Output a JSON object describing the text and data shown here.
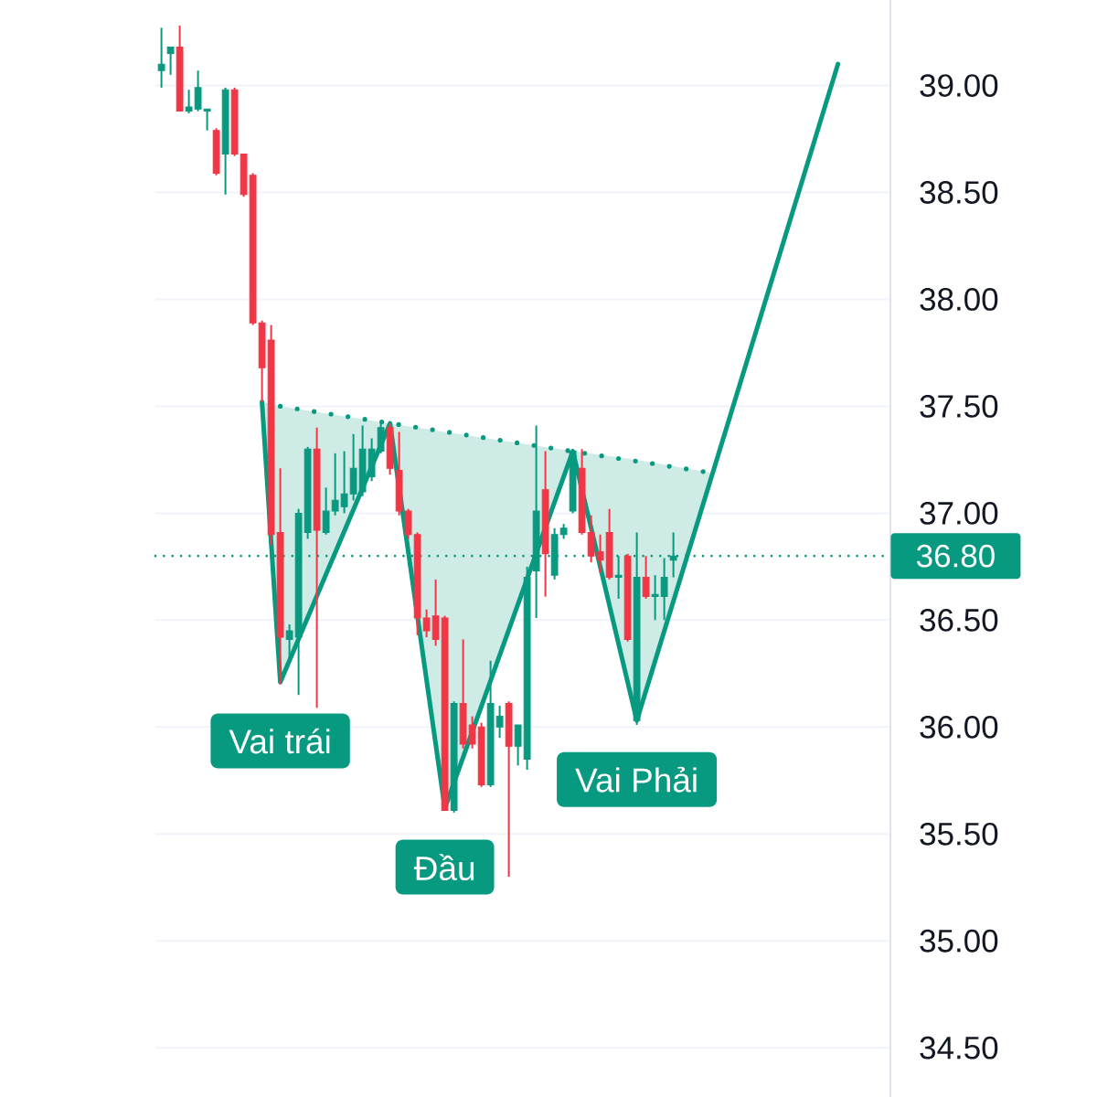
{
  "chart_data": {
    "type": "candlestick",
    "categories": [
      null,
      null,
      null,
      null,
      null,
      null,
      null,
      null,
      null,
      null,
      null,
      null,
      null,
      null,
      null,
      null,
      null,
      null,
      null,
      null,
      null,
      null,
      null,
      null,
      null,
      null,
      null,
      null,
      null,
      null,
      null,
      null,
      null,
      null,
      null,
      null,
      null,
      null,
      null,
      null,
      null,
      null,
      null,
      null,
      null,
      null,
      null,
      null,
      null,
      null,
      null,
      null,
      null,
      null,
      null,
      null,
      null,
      null,
      null,
      null,
      null,
      null,
      null,
      null,
      null,
      null,
      null,
      null,
      null,
      null,
      null,
      null,
      null,
      null,
      null,
      null,
      null,
      null,
      null,
      null
    ],
    "ohlc": [
      [
        39.07,
        39.27,
        38.99,
        39.1
      ],
      [
        39.15,
        39.18,
        39.05,
        39.18
      ],
      [
        39.18,
        39.28,
        38.88,
        38.88
      ],
      [
        38.88,
        38.98,
        38.87,
        38.9
      ],
      [
        38.89,
        39.07,
        38.88,
        38.99
      ],
      [
        38.88,
        38.89,
        38.79,
        38.89
      ],
      [
        38.79,
        38.8,
        38.58,
        38.59
      ],
      [
        38.68,
        38.99,
        38.49,
        38.98
      ],
      [
        38.98,
        38.99,
        38.67,
        38.68
      ],
      [
        38.68,
        38.68,
        38.48,
        38.49
      ],
      [
        38.58,
        38.59,
        37.88,
        37.89
      ],
      [
        37.89,
        37.9,
        37.52,
        37.68
      ],
      [
        37.81,
        37.88,
        36.85,
        36.9
      ],
      [
        36.91,
        37.21,
        36.2,
        36.42
      ],
      [
        36.41,
        36.48,
        36.3,
        36.45
      ],
      [
        36.42,
        37.02,
        36.15,
        37.0
      ],
      [
        36.91,
        37.31,
        36.88,
        37.3
      ],
      [
        37.3,
        37.4,
        36.09,
        36.92
      ],
      [
        36.91,
        37.12,
        36.9,
        37.01
      ],
      [
        37.01,
        37.28,
        36.99,
        37.06
      ],
      [
        37.03,
        37.29,
        37.0,
        37.09
      ],
      [
        37.09,
        37.37,
        37.06,
        37.21
      ],
      [
        37.1,
        37.41,
        37.08,
        37.3
      ],
      [
        37.17,
        37.35,
        37.15,
        37.3
      ],
      [
        37.29,
        37.42,
        37.28,
        37.4
      ],
      [
        37.4,
        37.42,
        37.18,
        37.21
      ],
      [
        37.2,
        37.38,
        36.99,
        37.01
      ],
      [
        37.01,
        37.02,
        36.88,
        36.9
      ],
      [
        36.9,
        36.91,
        36.43,
        36.51
      ],
      [
        36.51,
        36.55,
        36.42,
        36.45
      ],
      [
        36.52,
        36.69,
        36.38,
        36.41
      ],
      [
        36.51,
        36.52,
        35.61,
        35.61
      ],
      [
        35.61,
        36.12,
        35.6,
        36.11
      ],
      [
        36.11,
        36.41,
        35.9,
        35.92
      ],
      [
        36.01,
        36.05,
        35.9,
        35.92
      ],
      [
        36.0,
        36.02,
        35.72,
        35.73
      ],
      [
        35.73,
        36.31,
        35.72,
        36.11
      ],
      [
        36.0,
        36.1,
        35.95,
        36.05
      ],
      [
        36.11,
        36.12,
        35.3,
        35.91
      ],
      [
        35.91,
        36.01,
        35.82,
        36.01
      ],
      [
        35.85,
        36.75,
        35.8,
        36.7
      ],
      [
        36.73,
        37.41,
        36.51,
        37.01
      ],
      [
        37.11,
        37.29,
        36.61,
        36.81
      ],
      [
        36.71,
        36.93,
        36.69,
        36.9
      ],
      [
        36.9,
        36.95,
        36.88,
        36.93
      ],
      [
        37.01,
        37.3,
        37.0,
        37.29
      ],
      [
        37.21,
        37.3,
        36.9,
        36.91
      ],
      [
        36.91,
        36.99,
        36.77,
        36.8
      ],
      [
        36.82,
        36.9,
        36.72,
        36.78
      ],
      [
        36.91,
        37.02,
        36.69,
        36.7
      ],
      [
        36.7,
        36.8,
        36.6,
        36.71
      ],
      [
        36.8,
        36.81,
        36.4,
        36.41
      ],
      [
        36.03,
        36.91,
        36.01,
        36.7
      ],
      [
        36.7,
        36.8,
        36.6,
        36.61
      ],
      [
        36.61,
        36.71,
        36.5,
        36.62
      ],
      [
        36.61,
        36.79,
        36.5,
        36.7
      ],
      [
        36.78,
        36.91,
        36.7,
        36.8
      ],
      null,
      null,
      null,
      null,
      null,
      null,
      null,
      null,
      null,
      null,
      null,
      null,
      null,
      null,
      null,
      null,
      null,
      null,
      null,
      null,
      null,
      null,
      null
    ],
    "colors": [
      "#089981",
      "#089981",
      "#f23645",
      "#089981",
      "#089981",
      "#089981",
      "#f23645",
      "#089981",
      "#f23645",
      "#f23645",
      "#f23645",
      "#f23645",
      "#f23645",
      "#f23645",
      "#089981",
      "#089981",
      "#089981",
      "#f23645",
      "#089981",
      "#089981",
      "#089981",
      "#089981",
      "#089981",
      "#089981",
      "#089981",
      "#f23645",
      "#f23645",
      "#f23645",
      "#f23645",
      "#f23645",
      "#f23645",
      "#f23645",
      "#089981",
      "#f23645",
      "#f23645",
      "#f23645",
      "#089981",
      "#089981",
      "#f23645",
      "#089981",
      "#089981",
      "#089981",
      "#f23645",
      "#089981",
      "#089981",
      "#089981",
      "#f23645",
      "#f23645",
      "#f23645",
      "#f23645",
      "#089981",
      "#f23645",
      "#089981",
      "#f23645",
      "#089981",
      "#089981",
      "#089981",
      null,
      null,
      null,
      null,
      null,
      null,
      null,
      null,
      null,
      null,
      null,
      null,
      null,
      null,
      null,
      null,
      null,
      null,
      null,
      null,
      null,
      null,
      null
    ],
    "series": [
      {
        "type": "line",
        "color": "#089981",
        "values": [
          null,
          null,
          null,
          null,
          null,
          null,
          null,
          null,
          null,
          null,
          null,
          37.52,
          null,
          36.21,
          null,
          null,
          null,
          null,
          null,
          null,
          null,
          null,
          null,
          null,
          null,
          37.42,
          null,
          null,
          null,
          null,
          null,
          35.62,
          null,
          null,
          null,
          null,
          null,
          null,
          null,
          null,
          null,
          null,
          null,
          null,
          null,
          37.29,
          null,
          null,
          null,
          null,
          null,
          null,
          36.03,
          null,
          null,
          null,
          null,
          null,
          null,
          null,
          null,
          null,
          null,
          null,
          null,
          null,
          null,
          null,
          null,
          null,
          null,
          null,
          null,
          null,
          39.1,
          null,
          null,
          null,
          null,
          null
        ],
        "lower": [
          null,
          null,
          null,
          null,
          null,
          null,
          null,
          null,
          null,
          null,
          null,
          37.52,
          null,
          36.21,
          null,
          null,
          null,
          null,
          null,
          null,
          null,
          null,
          null,
          null,
          null,
          37.42,
          null,
          null,
          null,
          null,
          null,
          35.62,
          null,
          null,
          null,
          null,
          null,
          null,
          null,
          null,
          null,
          null,
          null,
          null,
          null,
          37.29,
          null,
          null,
          null,
          null,
          null,
          null,
          36.03,
          null,
          null,
          null,
          null,
          null,
          null,
          null,
          37.15,
          null,
          null,
          null,
          null,
          null,
          null,
          null,
          null,
          null,
          null,
          null,
          null,
          null,
          null,
          null,
          null,
          null,
          null,
          null
        ],
        "upper": [
          null,
          null,
          null,
          null,
          null,
          null,
          null,
          null,
          null,
          null,
          null,
          37.52,
          null,
          37.5,
          null,
          null,
          null,
          null,
          null,
          null,
          null,
          null,
          null,
          null,
          null,
          37.42,
          null,
          null,
          null,
          null,
          null,
          37.38,
          null,
          null,
          null,
          null,
          null,
          null,
          null,
          null,
          null,
          null,
          null,
          null,
          null,
          37.29,
          null,
          null,
          null,
          null,
          null,
          null,
          37.25,
          null,
          null,
          null,
          null,
          null,
          null,
          null,
          37.19,
          null,
          null,
          null,
          null,
          null,
          null,
          null,
          null,
          null,
          null,
          null,
          null,
          null,
          null,
          null,
          null,
          null,
          null,
          null
        ]
      },
      {
        "type": "line",
        "color": "#089981",
        "line_style": "dotted",
        "values": [
          null,
          null,
          null,
          null,
          null,
          null,
          null,
          null,
          null,
          null,
          null,
          null,
          null,
          37.5,
          null,
          null,
          null,
          null,
          null,
          null,
          null,
          null,
          null,
          null,
          null,
          null,
          null,
          null,
          null,
          null,
          null,
          null,
          null,
          null,
          null,
          null,
          null,
          null,
          null,
          null,
          null,
          null,
          null,
          null,
          null,
          null,
          null,
          null,
          null,
          null,
          null,
          null,
          null,
          null,
          null,
          null,
          null,
          null,
          null,
          null,
          37.19,
          null,
          null,
          null,
          null,
          null,
          null,
          null,
          null,
          null,
          null,
          null,
          null,
          null,
          null,
          null,
          null,
          null,
          null,
          null
        ]
      }
    ],
    "ylim": [
      34.27,
      39.4
    ],
    "yticks": [
      {
        "value": 34.5,
        "label": "34.50"
      },
      {
        "value": 35.0,
        "label": "35.00"
      },
      {
        "value": 35.5,
        "label": "35.50"
      },
      {
        "value": 36.0,
        "label": "36.00"
      },
      {
        "value": 36.5,
        "label": "36.50"
      },
      {
        "value": 37.0,
        "label": "37.00"
      },
      {
        "value": 37.5,
        "label": "37.50"
      },
      {
        "value": 38.0,
        "label": "38.00"
      },
      {
        "value": 38.5,
        "label": "38.50"
      },
      {
        "value": 39.0,
        "label": "39.00"
      }
    ],
    "tick_labels": "y",
    "grid": "y",
    "ref_lines": [
      {
        "axis": "y",
        "value": 36.8,
        "label": "36.80",
        "color": "#089981",
        "line_style": "dotted"
      }
    ],
    "annotations": [
      {
        "text": "Vai trái",
        "y": 36.21
      },
      {
        "text": "Đầu",
        "y": 35.62
      },
      {
        "text": "Vai Phải",
        "y": 36.03
      }
    ]
  }
}
